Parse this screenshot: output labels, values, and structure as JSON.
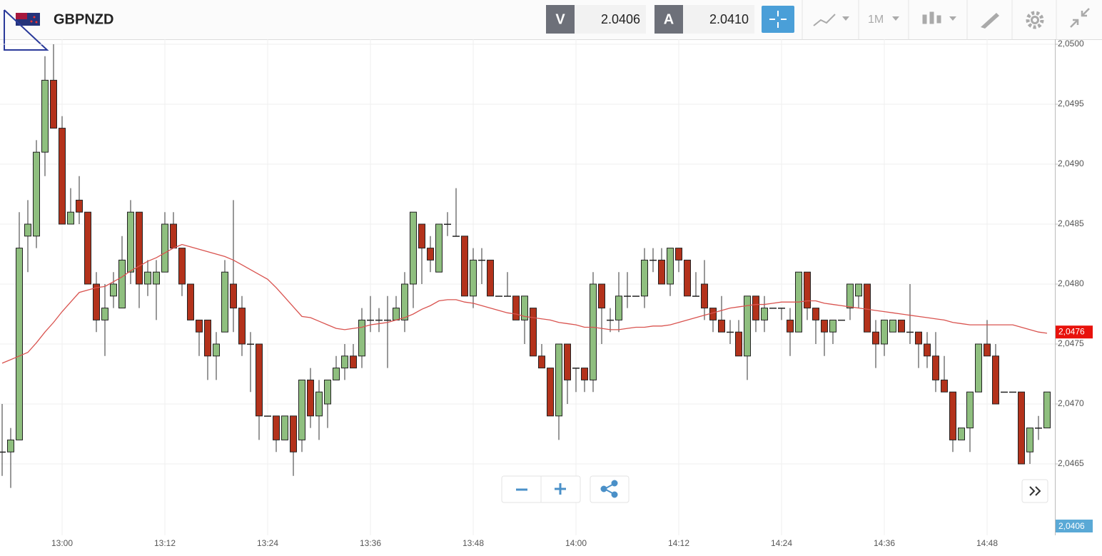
{
  "toolbar": {
    "symbol": "GBPNZD",
    "sell_label": "V",
    "sell_price": "2.0406",
    "buy_label": "A",
    "buy_price": "2.0410",
    "timeframe": "1M"
  },
  "chart_data": {
    "type": "candlestick",
    "categories": [
      null,
      null,
      null,
      null,
      null,
      null,
      null,
      "13:00",
      null,
      null,
      null,
      null,
      null,
      null,
      null,
      null,
      null,
      null,
      null,
      "13:12",
      null,
      null,
      null,
      null,
      null,
      null,
      null,
      null,
      null,
      null,
      null,
      "13:24",
      null,
      null,
      null,
      null,
      null,
      null,
      null,
      null,
      null,
      null,
      null,
      "13:36",
      null,
      null,
      null,
      null,
      null,
      null,
      null,
      null,
      null,
      null,
      null,
      "13:48",
      null,
      null,
      null,
      null,
      null,
      null,
      null,
      null,
      null,
      null,
      null,
      "14:00",
      null,
      null,
      null,
      null,
      null,
      null,
      null,
      null,
      null,
      null,
      null,
      "14:12",
      null,
      null,
      null,
      null,
      null,
      null,
      null,
      null,
      null,
      null,
      null,
      "14:24",
      null,
      null,
      null,
      null,
      null,
      null,
      null,
      null,
      null,
      null,
      null,
      "14:36",
      null,
      null,
      null,
      null,
      null,
      null,
      null,
      null,
      null,
      null,
      null,
      "14:48",
      null,
      null,
      null,
      null,
      null,
      null,
      null
    ],
    "open": [
      2.0466,
      2.0466,
      2.0467,
      2.0484,
      2.0484,
      2.0491,
      2.0497,
      2.0493,
      2.0485,
      2.0487,
      2.0486,
      2.048,
      2.0477,
      2.0479,
      2.0478,
      2.0481,
      2.0486,
      2.048,
      2.048,
      2.0481,
      2.0485,
      2.0483,
      2.048,
      2.0477,
      2.0477,
      2.0474,
      2.0476,
      2.048,
      2.0478,
      2.0475,
      2.0475,
      2.0469,
      2.0469,
      2.0467,
      2.0469,
      2.0467,
      2.0472,
      2.0469,
      2.047,
      2.0472,
      2.0473,
      2.0474,
      2.0474,
      2.0477,
      2.0477,
      2.0477,
      2.0477,
      2.0477,
      2.048,
      2.0485,
      2.0483,
      2.0481,
      2.0485,
      2.0484,
      2.0484,
      2.0479,
      2.0482,
      2.0482,
      2.0479,
      2.0479,
      2.0479,
      2.0477,
      2.0478,
      2.0474,
      2.0473,
      2.0469,
      2.0475,
      2.0473,
      2.0473,
      2.0472,
      2.048,
      2.0477,
      2.0477,
      2.0479,
      2.0479,
      2.0479,
      2.0482,
      2.0482,
      2.048,
      2.0483,
      2.0482,
      2.0479,
      2.048,
      2.0478,
      2.0477,
      2.0476,
      2.0476,
      2.0474,
      2.0479,
      2.0477,
      2.0478,
      2.0478,
      2.0477,
      2.0476,
      2.0481,
      2.0478,
      2.0477,
      2.0476,
      2.0477,
      2.0478,
      2.0479,
      2.048,
      2.0476,
      2.0475,
      2.0476,
      2.0477,
      2.0476,
      2.0476,
      2.0475,
      2.0474,
      2.0472,
      2.0471,
      2.0467,
      2.0468,
      2.0471,
      2.0475,
      2.0474,
      2.0471,
      2.0471,
      2.0471,
      2.0466,
      2.0468,
      2.0468
    ],
    "high": [
      2.047,
      2.0468,
      2.0486,
      2.0487,
      2.0492,
      2.0499,
      2.05,
      2.0494,
      2.0488,
      2.0489,
      2.0486,
      2.0481,
      2.048,
      2.0481,
      2.0484,
      2.0487,
      2.0486,
      2.0482,
      2.0482,
      2.0486,
      2.0486,
      2.0483,
      2.048,
      2.0477,
      2.0477,
      2.0476,
      2.0482,
      2.0487,
      2.0479,
      2.0476,
      2.0475,
      2.0469,
      2.0469,
      2.0469,
      2.0469,
      2.0472,
      2.0473,
      2.0472,
      2.0472,
      2.0474,
      2.0475,
      2.0475,
      2.0478,
      2.0479,
      2.0478,
      2.0479,
      2.0479,
      2.0481,
      2.0486,
      2.0485,
      2.0484,
      2.0485,
      2.0486,
      2.0488,
      2.0484,
      2.0483,
      2.0483,
      2.0482,
      2.0479,
      2.0481,
      2.0479,
      2.0479,
      2.0478,
      2.0475,
      2.0473,
      2.0475,
      2.0475,
      2.0473,
      2.0473,
      2.0481,
      2.048,
      2.0478,
      2.0481,
      2.0481,
      2.0479,
      2.0483,
      2.0483,
      2.0483,
      2.0483,
      2.0483,
      2.0482,
      2.0481,
      2.0482,
      2.0478,
      2.0479,
      2.0477,
      2.0477,
      2.0479,
      2.0479,
      2.0479,
      2.0478,
      2.0478,
      2.0478,
      2.0481,
      2.0481,
      2.0478,
      2.0477,
      2.0477,
      2.0477,
      2.048,
      2.048,
      2.048,
      2.0477,
      2.0477,
      2.0477,
      2.0477,
      2.048,
      2.0476,
      2.0476,
      2.0476,
      2.0474,
      2.0471,
      2.0468,
      2.0471,
      2.0475,
      2.0477,
      2.0475,
      2.0471,
      2.0471,
      2.0471,
      2.0468,
      2.0469,
      2.0471
    ],
    "low": [
      2.0464,
      2.0463,
      2.0467,
      2.0481,
      2.0483,
      2.0489,
      2.0493,
      2.0485,
      2.0485,
      2.0485,
      2.048,
      2.0476,
      2.0474,
      2.0478,
      2.0478,
      2.048,
      2.0478,
      2.0479,
      2.0477,
      2.0481,
      2.0483,
      2.0479,
      2.0477,
      2.0474,
      2.0472,
      2.0472,
      2.0476,
      2.0476,
      2.0474,
      2.0471,
      2.0467,
      2.0469,
      2.0466,
      2.0467,
      2.0464,
      2.0466,
      2.0468,
      2.0467,
      2.0468,
      2.0472,
      2.0472,
      2.0473,
      2.0473,
      2.0476,
      2.0476,
      2.0473,
      2.0477,
      2.0476,
      2.0478,
      2.048,
      2.0481,
      2.0481,
      2.0484,
      2.0484,
      2.0479,
      2.0478,
      2.048,
      2.0479,
      2.0479,
      2.0479,
      2.0477,
      2.0475,
      2.0474,
      2.0473,
      2.0469,
      2.0467,
      2.047,
      2.0471,
      2.0471,
      2.0471,
      2.0475,
      2.0476,
      2.0476,
      2.0478,
      2.0479,
      2.0478,
      2.0481,
      2.048,
      2.0479,
      2.0481,
      2.0479,
      2.0479,
      2.0477,
      2.0476,
      2.0476,
      2.0475,
      2.0474,
      2.0472,
      2.0476,
      2.0476,
      2.0478,
      2.0477,
      2.0474,
      2.0476,
      2.0477,
      2.0475,
      2.0474,
      2.0475,
      2.0477,
      2.0477,
      2.0478,
      2.0476,
      2.0473,
      2.0474,
      2.0476,
      2.0476,
      2.0475,
      2.0473,
      2.0473,
      2.0471,
      2.0471,
      2.0466,
      2.0467,
      2.0466,
      2.0471,
      2.0474,
      2.047,
      2.0471,
      2.0471,
      2.0465,
      2.0465,
      2.0467,
      2.0468
    ],
    "close": [
      2.0466,
      2.0467,
      2.0483,
      2.0485,
      2.0491,
      2.0497,
      2.0493,
      2.0485,
      2.0486,
      2.0486,
      2.048,
      2.0477,
      2.0478,
      2.048,
      2.0482,
      2.0486,
      2.048,
      2.0481,
      2.0481,
      2.0485,
      2.0483,
      2.048,
      2.0477,
      2.0476,
      2.0474,
      2.0475,
      2.0481,
      2.0478,
      2.0475,
      2.0475,
      2.0469,
      2.0469,
      2.0467,
      2.0469,
      2.0466,
      2.0472,
      2.0469,
      2.0471,
      2.0472,
      2.0473,
      2.0474,
      2.0473,
      2.0477,
      2.0477,
      2.0477,
      2.0477,
      2.0478,
      2.048,
      2.0486,
      2.0483,
      2.0482,
      2.0485,
      2.0485,
      2.0484,
      2.0479,
      2.0482,
      2.0482,
      2.0479,
      2.0479,
      2.0479,
      2.0477,
      2.0479,
      2.0474,
      2.0473,
      2.0469,
      2.0475,
      2.0472,
      2.0473,
      2.0472,
      2.048,
      2.0478,
      2.0477,
      2.0479,
      2.0479,
      2.0479,
      2.0482,
      2.0482,
      2.048,
      2.0483,
      2.0482,
      2.0479,
      2.0479,
      2.0478,
      2.0477,
      2.0476,
      2.0476,
      2.0474,
      2.0479,
      2.0477,
      2.0478,
      2.0478,
      2.0478,
      2.0476,
      2.0481,
      2.0478,
      2.0477,
      2.0476,
      2.0477,
      2.0477,
      2.048,
      2.048,
      2.0476,
      2.0475,
      2.0477,
      2.0477,
      2.0476,
      2.0476,
      2.0475,
      2.0474,
      2.0472,
      2.0471,
      2.0467,
      2.0468,
      2.0471,
      2.0475,
      2.0474,
      2.047,
      2.0471,
      2.0471,
      2.0465,
      2.0468,
      2.0468,
      2.0471
    ],
    "up_color": "#8fbf7f",
    "down_color": "#b3321b",
    "moving_average": {
      "color": "#d9534f",
      "values": [
        2.04734,
        2.04737,
        2.0474,
        2.04743,
        2.04751,
        2.0476,
        2.04768,
        2.04777,
        2.04785,
        2.04793,
        2.04795,
        2.04797,
        2.04798,
        2.04802,
        2.04806,
        2.04811,
        2.04815,
        2.04819,
        2.04822,
        2.04826,
        2.0483,
        2.04833,
        2.04831,
        2.04829,
        2.04827,
        2.04825,
        2.04823,
        2.0482,
        2.04816,
        2.04812,
        2.04808,
        2.04804,
        2.04797,
        2.04789,
        2.04781,
        2.04773,
        2.04772,
        2.04769,
        2.04766,
        2.04763,
        2.04762,
        2.04763,
        2.04764,
        2.04766,
        2.04767,
        2.04768,
        2.0477,
        2.04772,
        2.04775,
        2.04779,
        2.04782,
        2.04786,
        2.04787,
        2.04787,
        2.04785,
        2.04784,
        2.04782,
        2.0478,
        2.04778,
        2.04776,
        2.04775,
        2.04773,
        2.04772,
        2.04771,
        2.0477,
        2.04768,
        2.04767,
        2.04766,
        2.04764,
        2.04764,
        2.04763,
        2.04762,
        2.04762,
        2.04763,
        2.04764,
        2.04764,
        2.04765,
        2.04765,
        2.04766,
        2.04768,
        2.0477,
        2.04772,
        2.04774,
        2.04776,
        2.04778,
        2.0478,
        2.04781,
        2.04782,
        2.04783,
        2.04783,
        2.04784,
        2.04785,
        2.04785,
        2.04785,
        2.04786,
        2.04786,
        2.04784,
        2.04783,
        2.04782,
        2.04781,
        2.0478,
        2.04779,
        2.04778,
        2.04777,
        2.04776,
        2.04775,
        2.04774,
        2.04773,
        2.04772,
        2.04771,
        2.0477,
        2.04768,
        2.04767,
        2.04766,
        2.04766,
        2.04766,
        2.04766,
        2.04766,
        2.04766,
        2.04764,
        2.04762,
        2.0476,
        2.04759
      ]
    },
    "ylim": [
      2.0459,
      2.05
    ],
    "yticks": [
      {
        "value": 2.0465,
        "label": "2,0465"
      },
      {
        "value": 2.047,
        "label": "2,0470"
      },
      {
        "value": 2.0475,
        "label": "2,0475"
      },
      {
        "value": 2.048,
        "label": "2,0480"
      },
      {
        "value": 2.0485,
        "label": "2,0485"
      },
      {
        "value": 2.049,
        "label": "2,0490"
      },
      {
        "value": 2.0495,
        "label": "2,0495"
      },
      {
        "value": 2.05,
        "label": "2,0500"
      }
    ],
    "grid": true,
    "price_tag": {
      "value": 2.0476,
      "label": "2,0476"
    },
    "bid_tag": "2,0406"
  }
}
